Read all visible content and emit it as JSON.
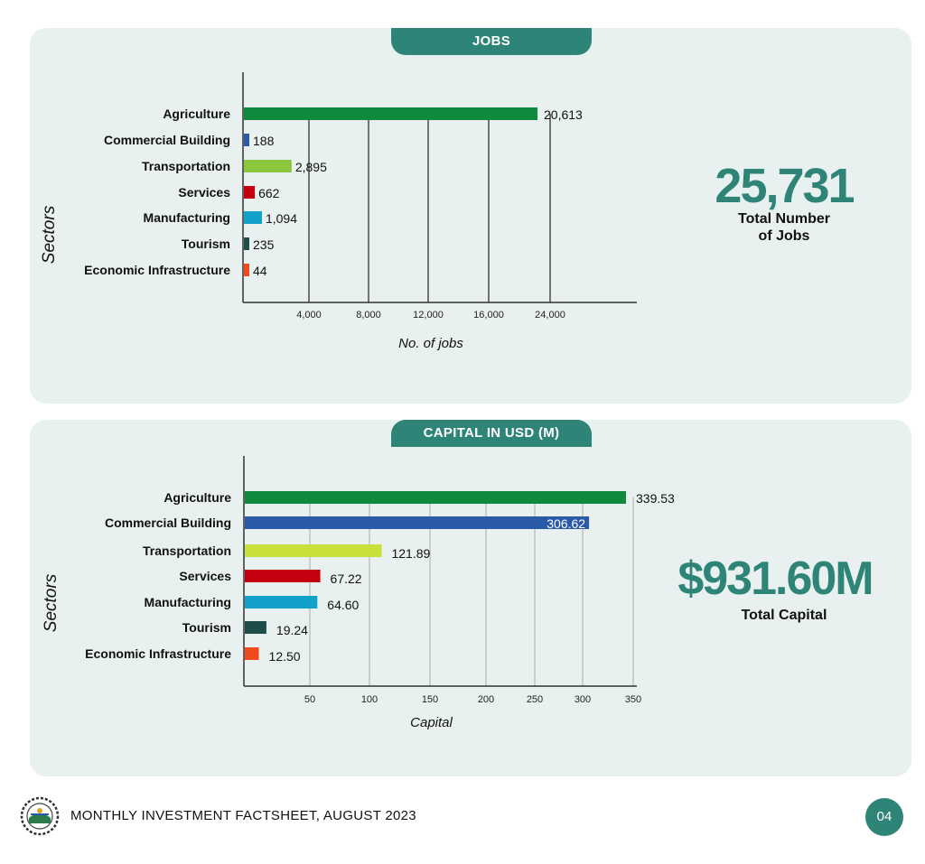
{
  "jobs_section": {
    "tab_title": "JOBS",
    "y_label": "Sectors",
    "x_label": "No. of jobs",
    "total_value": "25,731",
    "total_caption_line1": "Total Number",
    "total_caption_line2": "of Jobs"
  },
  "capital_section": {
    "tab_title": "CAPITAL IN USD (M)",
    "y_label": "Sectors",
    "x_label": "Capital",
    "total_value": "$931.60M",
    "total_caption": "Total Capital"
  },
  "footer": {
    "title": "MONTHLY INVESTMENT FACTSHEET, AUGUST 2023",
    "page_number": "04",
    "logo_icon": "government-seal-icon"
  },
  "chart_data": [
    {
      "type": "bar",
      "orientation": "horizontal",
      "categories": [
        "Agriculture",
        "Commercial Building",
        "Transportation",
        "Services",
        "Manufacturing",
        "Tourism",
        "Economic Infrastructure"
      ],
      "values": [
        20613,
        188,
        2895,
        662,
        1094,
        235,
        44
      ],
      "value_labels": [
        "20,613",
        "188",
        "2,895",
        "662",
        "1,094",
        "235",
        "44"
      ],
      "colors": [
        "#0f8a3c",
        "#2b5aa8",
        "#8cc63f",
        "#c4000f",
        "#12a2c9",
        "#1e4d4a",
        "#f04a1e"
      ],
      "xticks": [
        4000,
        8000,
        12000,
        16000,
        24000
      ],
      "xtick_labels": [
        "4,000",
        "8,000",
        "12,000",
        "16,000",
        "24,000"
      ],
      "xlabel": "No. of jobs",
      "ylabel": "Sectors",
      "grid": true
    },
    {
      "type": "bar",
      "orientation": "horizontal",
      "categories": [
        "Agriculture",
        "Commercial Building",
        "Transportation",
        "Services",
        "Manufacturing",
        "Tourism",
        "Economic Infrastructure"
      ],
      "values": [
        339.53,
        306.62,
        121.89,
        67.22,
        64.6,
        19.24,
        12.5
      ],
      "value_labels": [
        "339.53",
        "306.62",
        "121.89",
        "67.22",
        "64.60",
        "19.24",
        "12.50"
      ],
      "colors": [
        "#0f8a3c",
        "#2b5aa8",
        "#c9e03a",
        "#c4000f",
        "#12a2c9",
        "#1e4d4a",
        "#f04a1e"
      ],
      "xticks": [
        50,
        100,
        150,
        200,
        250,
        300,
        350
      ],
      "xtick_labels": [
        "50",
        "100",
        "150",
        "200",
        "250",
        "300",
        "350"
      ],
      "xlabel": "Capital",
      "ylabel": "Sectors",
      "grid": true
    }
  ]
}
